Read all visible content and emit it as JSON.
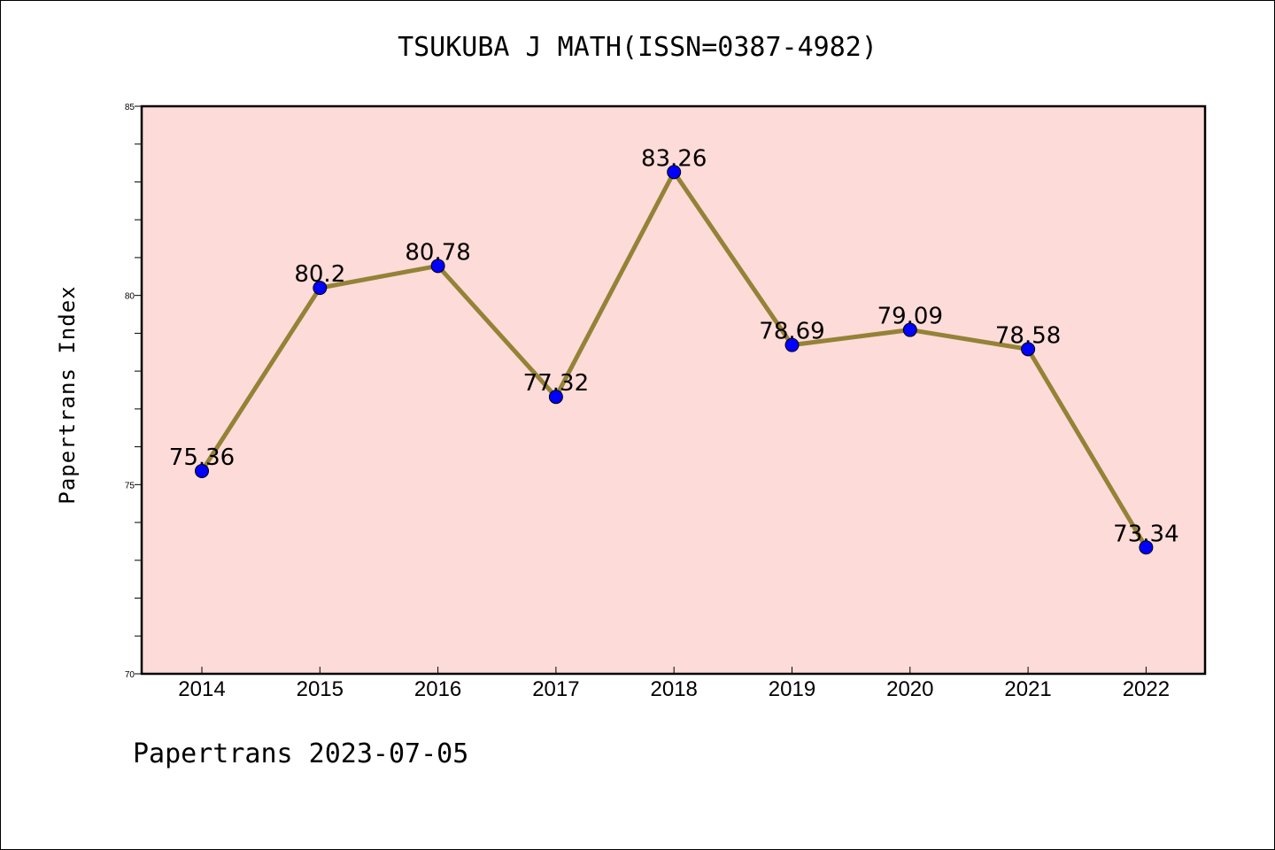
{
  "title": "TSUKUBA J MATH(ISSN=0387-4982)",
  "footer": "Papertrans 2023-07-05",
  "chart_data": {
    "type": "line",
    "title": "TSUKUBA J MATH(ISSN=0387-4982)",
    "xlabel": "",
    "ylabel": "Papertrans Index",
    "categories": [
      "2014",
      "2015",
      "2016",
      "2017",
      "2018",
      "2019",
      "2020",
      "2021",
      "2022"
    ],
    "series": [
      {
        "values": [
          75.36,
          80.2,
          80.78,
          77.32,
          83.26,
          78.69,
          79.09,
          78.58,
          73.34
        ]
      }
    ],
    "data_labels": [
      "75.36",
      "80.2",
      "80.78",
      "77.32",
      "83.26",
      "78.69",
      "79.09",
      "78.58",
      "73.34"
    ],
    "ylim": [
      70,
      85
    ],
    "yticks": [
      70,
      75,
      80,
      85
    ],
    "grid": false,
    "colors": {
      "plot_background": "#fddbd8",
      "line": "#948237",
      "marker": "#0000ff"
    }
  }
}
